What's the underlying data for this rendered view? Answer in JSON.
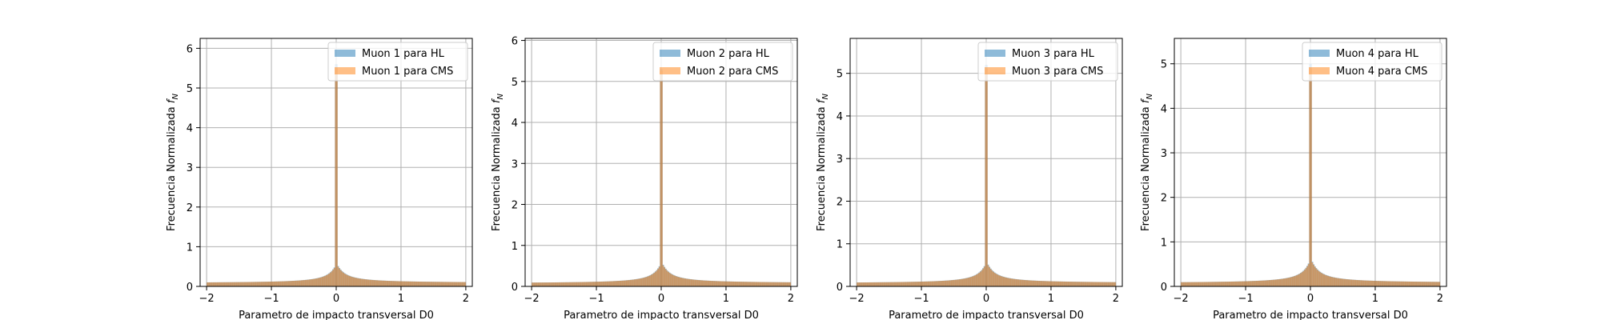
{
  "figure": {
    "panel_count": 4
  },
  "chart_data": [
    {
      "type": "bar",
      "title": "",
      "xlabel": "Parametro de impacto transversal D0",
      "ylabel": "Frecuencia Normalizada",
      "ylabel_sym": "f",
      "ylabel_sub": "N",
      "xlim": [
        -2.1,
        2.1
      ],
      "ylim": [
        0,
        6.25
      ],
      "xticks": [
        -2,
        -1,
        0,
        1,
        2
      ],
      "xtick_labels": [
        "−2",
        "−1",
        "0",
        "1",
        "2"
      ],
      "yticks": [
        0,
        1,
        2,
        3,
        4,
        5,
        6
      ],
      "ytick_labels": [
        "0",
        "1",
        "2",
        "3",
        "4",
        "5",
        "6"
      ],
      "grid": true,
      "legend_position": "top-right",
      "series": [
        {
          "name": "Muon 1 para HL",
          "color": "#1f77b4",
          "alpha": 0.5,
          "peak": 5.6,
          "base": 0.09,
          "shoulder": 0.6
        },
        {
          "name": "Muon 1 para CMS",
          "color": "#ff7f0e",
          "alpha": 0.5,
          "peak": 5.5,
          "base": 0.09,
          "shoulder": 0.58
        }
      ]
    },
    {
      "type": "bar",
      "title": "",
      "xlabel": "Parametro de impacto transversal D0",
      "ylabel": "Frecuencia Normalizada",
      "ylabel_sym": "f",
      "ylabel_sub": "N",
      "xlim": [
        -2.1,
        2.1
      ],
      "ylim": [
        0,
        6.05
      ],
      "xticks": [
        -2,
        -1,
        0,
        1,
        2
      ],
      "xtick_labels": [
        "−2",
        "−1",
        "0",
        "1",
        "2"
      ],
      "yticks": [
        0,
        1,
        2,
        3,
        4,
        5,
        6
      ],
      "ytick_labels": [
        "0",
        "1",
        "2",
        "3",
        "4",
        "5",
        "6"
      ],
      "grid": true,
      "legend_position": "top-right",
      "series": [
        {
          "name": "Muon 2 para HL",
          "color": "#1f77b4",
          "alpha": 0.5,
          "peak": 5.3,
          "base": 0.08,
          "shoulder": 0.62
        },
        {
          "name": "Muon 2 para CMS",
          "color": "#ff7f0e",
          "alpha": 0.5,
          "peak": 5.25,
          "base": 0.08,
          "shoulder": 0.6
        }
      ]
    },
    {
      "type": "bar",
      "title": "",
      "xlabel": "Parametro de impacto transversal D0",
      "ylabel": "Frecuencia Normalizada",
      "ylabel_sym": "f",
      "ylabel_sub": "N",
      "xlim": [
        -2.1,
        2.1
      ],
      "ylim": [
        0,
        5.82
      ],
      "xticks": [
        -2,
        -1,
        0,
        1,
        2
      ],
      "xtick_labels": [
        "−2",
        "−1",
        "0",
        "1",
        "2"
      ],
      "yticks": [
        0,
        1,
        2,
        3,
        4,
        5
      ],
      "ytick_labels": [
        "0",
        "1",
        "2",
        "3",
        "4",
        "5"
      ],
      "grid": true,
      "legend_position": "top-right",
      "series": [
        {
          "name": "Muon 3 para HL",
          "color": "#1f77b4",
          "alpha": 0.5,
          "peak": 5.2,
          "base": 0.08,
          "shoulder": 0.6
        },
        {
          "name": "Muon 3 para CMS",
          "color": "#ff7f0e",
          "alpha": 0.5,
          "peak": 5.1,
          "base": 0.08,
          "shoulder": 0.58
        }
      ]
    },
    {
      "type": "bar",
      "title": "",
      "xlabel": "Parametro de impacto transversal D0",
      "ylabel": "Frecuencia Normalizada",
      "ylabel_sym": "f",
      "ylabel_sub": "N",
      "xlim": [
        -2.1,
        2.1
      ],
      "ylim": [
        0,
        5.57
      ],
      "xticks": [
        -2,
        -1,
        0,
        1,
        2
      ],
      "xtick_labels": [
        "−2",
        "−1",
        "0",
        "1",
        "2"
      ],
      "yticks": [
        0,
        1,
        2,
        3,
        4,
        5
      ],
      "ytick_labels": [
        "0",
        "1",
        "2",
        "3",
        "4",
        "5"
      ],
      "grid": true,
      "legend_position": "top-right",
      "series": [
        {
          "name": "Muon 4 para HL",
          "color": "#1f77b4",
          "alpha": 0.5,
          "peak": 5.0,
          "base": 0.08,
          "shoulder": 0.65
        },
        {
          "name": "Muon 4 para CMS",
          "color": "#ff7f0e",
          "alpha": 0.5,
          "peak": 4.9,
          "base": 0.08,
          "shoulder": 0.63
        }
      ]
    }
  ]
}
